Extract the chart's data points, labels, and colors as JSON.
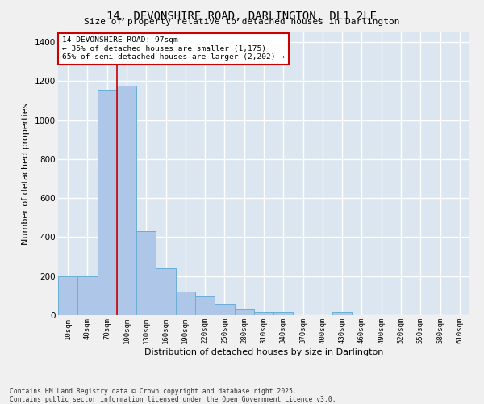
{
  "title": "14, DEVONSHIRE ROAD, DARLINGTON, DL1 2LE",
  "subtitle": "Size of property relative to detached houses in Darlington",
  "xlabel": "Distribution of detached houses by size in Darlington",
  "ylabel": "Number of detached properties",
  "categories": [
    "10sqm",
    "40sqm",
    "70sqm",
    "100sqm",
    "130sqm",
    "160sqm",
    "190sqm",
    "220sqm",
    "250sqm",
    "280sqm",
    "310sqm",
    "340sqm",
    "370sqm",
    "400sqm",
    "430sqm",
    "460sqm",
    "490sqm",
    "520sqm",
    "550sqm",
    "580sqm",
    "610sqm"
  ],
  "values": [
    200,
    200,
    1150,
    1175,
    430,
    240,
    120,
    100,
    60,
    30,
    15,
    15,
    0,
    0,
    15,
    0,
    0,
    0,
    0,
    0,
    0
  ],
  "bar_color": "#aec6e8",
  "bar_edge_color": "#6aaed6",
  "fig_bg_color": "#f0f0f0",
  "ax_bg_color": "#dce6f0",
  "grid_color": "#ffffff",
  "vline_x": 2.5,
  "vline_color": "#cc0000",
  "annotation_text": "14 DEVONSHIRE ROAD: 97sqm\n← 35% of detached houses are smaller (1,175)\n65% of semi-detached houses are larger (2,202) →",
  "annotation_box_color": "#cc0000",
  "ylim": [
    0,
    1450
  ],
  "yticks": [
    0,
    200,
    400,
    600,
    800,
    1000,
    1200,
    1400
  ],
  "footnote1": "Contains HM Land Registry data © Crown copyright and database right 2025.",
  "footnote2": "Contains public sector information licensed under the Open Government Licence v3.0."
}
